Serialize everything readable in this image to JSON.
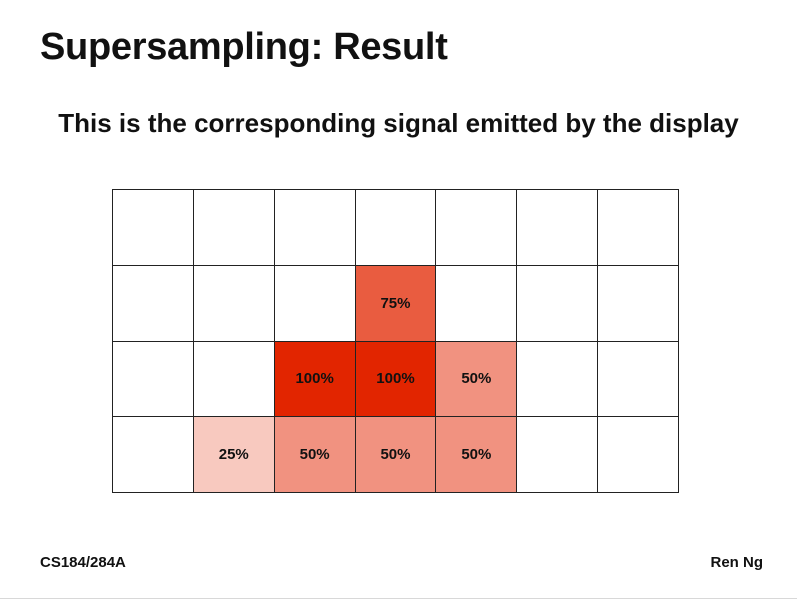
{
  "slide": {
    "title": "Supersampling: Result",
    "subtitle": "This is the corresponding signal emitted by the display",
    "footer_left": "CS184/284A",
    "footer_right": "Ren Ng"
  },
  "grid": {
    "fill_color": "#e22500",
    "rows": [
      [
        {
          "coverage": 0,
          "label": ""
        },
        {
          "coverage": 0,
          "label": ""
        },
        {
          "coverage": 0,
          "label": ""
        },
        {
          "coverage": 0,
          "label": ""
        },
        {
          "coverage": 0,
          "label": ""
        },
        {
          "coverage": 0,
          "label": ""
        },
        {
          "coverage": 0,
          "label": ""
        }
      ],
      [
        {
          "coverage": 0,
          "label": ""
        },
        {
          "coverage": 0,
          "label": ""
        },
        {
          "coverage": 0,
          "label": ""
        },
        {
          "coverage": 0.75,
          "label": "75%"
        },
        {
          "coverage": 0,
          "label": ""
        },
        {
          "coverage": 0,
          "label": ""
        },
        {
          "coverage": 0,
          "label": ""
        }
      ],
      [
        {
          "coverage": 0,
          "label": ""
        },
        {
          "coverage": 0,
          "label": ""
        },
        {
          "coverage": 1.0,
          "label": "100%"
        },
        {
          "coverage": 1.0,
          "label": "100%"
        },
        {
          "coverage": 0.5,
          "label": "50%"
        },
        {
          "coverage": 0,
          "label": ""
        },
        {
          "coverage": 0,
          "label": ""
        }
      ],
      [
        {
          "coverage": 0,
          "label": ""
        },
        {
          "coverage": 0.25,
          "label": "25%"
        },
        {
          "coverage": 0.5,
          "label": "50%"
        },
        {
          "coverage": 0.5,
          "label": "50%"
        },
        {
          "coverage": 0.5,
          "label": "50%"
        },
        {
          "coverage": 0,
          "label": ""
        },
        {
          "coverage": 0,
          "label": ""
        }
      ]
    ]
  }
}
